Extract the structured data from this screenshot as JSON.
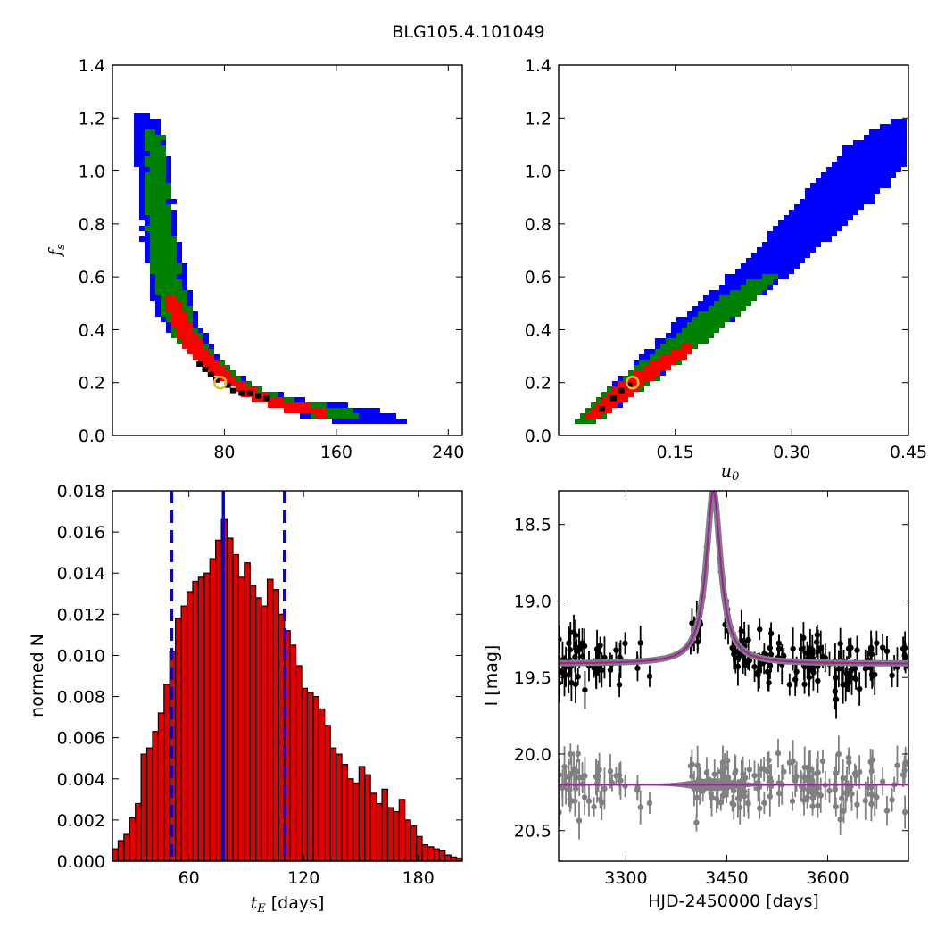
{
  "title": "BLG105.4.101049",
  "colors": {
    "sigma3": "#0000ff",
    "sigma2": "#008000",
    "sigma1": "#ff0000",
    "best_cells": "#000000",
    "best_marker_edge": "#e0c020",
    "hist_bar": "#e00000",
    "hist_edge": "#000000",
    "percentile_line": "#0000ff",
    "data_points": "#000000",
    "residual_points": "#808080",
    "model": "#a020a0",
    "model_band": "#808080"
  },
  "chart_data": [
    {
      "type": "heatmap",
      "panel": "tE-fs",
      "xlabel": "",
      "ylabel": "f_s",
      "xlim": [
        0,
        250
      ],
      "ylim": [
        0.0,
        1.4
      ],
      "xticks": [
        "80",
        "160",
        "240"
      ],
      "yticks": [
        "0.0",
        "0.2",
        "0.4",
        "0.6",
        "0.8",
        "1.0",
        "1.2",
        "1.4"
      ],
      "regions": [
        {
          "level": "3-sigma",
          "color": "blue",
          "curve": [
            [
              24,
              1.2
            ],
            [
              28,
              1.0
            ],
            [
              32,
              0.8
            ],
            [
              38,
              0.6
            ],
            [
              46,
              0.45
            ],
            [
              56,
              0.35
            ],
            [
              70,
              0.28
            ],
            [
              85,
              0.22
            ],
            [
              100,
              0.17
            ],
            [
              120,
              0.13
            ],
            [
              150,
              0.1
            ],
            [
              190,
              0.08
            ],
            [
              200,
              0.07
            ]
          ],
          "halfwidth_frac": [
            0.1,
            0.12,
            0.14,
            0.16,
            0.18,
            0.18,
            0.17,
            0.16,
            0.15,
            0.14,
            0.12,
            0.1,
            0.06
          ]
        },
        {
          "level": "2-sigma",
          "color": "green",
          "curve": [
            [
              28,
              1.15
            ],
            [
              32,
              0.85
            ],
            [
              38,
              0.6
            ],
            [
              46,
              0.45
            ],
            [
              56,
              0.35
            ],
            [
              70,
              0.28
            ],
            [
              85,
              0.22
            ],
            [
              100,
              0.17
            ],
            [
              120,
              0.13
            ],
            [
              150,
              0.1
            ],
            [
              170,
              0.085
            ]
          ],
          "halfwidth_frac": [
            0.05,
            0.08,
            0.1,
            0.11,
            0.12,
            0.12,
            0.11,
            0.1,
            0.09,
            0.08,
            0.05
          ]
        },
        {
          "level": "1-sigma",
          "color": "red",
          "curve": [
            [
              42,
              0.52
            ],
            [
              48,
              0.42
            ],
            [
              56,
              0.35
            ],
            [
              66,
              0.29
            ],
            [
              78,
              0.23
            ],
            [
              90,
              0.19
            ],
            [
              105,
              0.15
            ],
            [
              125,
              0.12
            ],
            [
              145,
              0.1
            ]
          ],
          "halfwidth_frac": [
            0.04,
            0.06,
            0.07,
            0.07,
            0.06,
            0.06,
            0.05,
            0.04,
            0.03
          ]
        }
      ],
      "best_cells": [
        [
          62,
          0.27
        ],
        [
          66,
          0.25
        ],
        [
          70,
          0.23
        ],
        [
          74,
          0.21
        ],
        [
          82,
          0.19
        ],
        [
          86,
          0.17
        ],
        [
          92,
          0.16
        ],
        [
          98,
          0.16
        ],
        [
          104,
          0.15
        ],
        [
          110,
          0.14
        ]
      ],
      "best_fit": {
        "x": 77,
        "y": 0.2
      }
    },
    {
      "type": "heatmap",
      "panel": "u0-fs",
      "xlabel": "u_0",
      "ylabel": "",
      "xlim": [
        0.0,
        0.45
      ],
      "ylim": [
        0.0,
        1.4
      ],
      "xticks": [
        "0.15",
        "0.30",
        "0.45"
      ],
      "yticks": [
        "0.0",
        "0.2",
        "0.4",
        "0.6",
        "0.8",
        "1.0",
        "1.2",
        "1.4"
      ],
      "regions": [
        {
          "level": "3-sigma",
          "color": "blue",
          "curve": [
            [
              0.035,
              0.07
            ],
            [
              0.06,
              0.13
            ],
            [
              0.1,
              0.22
            ],
            [
              0.15,
              0.35
            ],
            [
              0.2,
              0.48
            ],
            [
              0.25,
              0.6
            ],
            [
              0.3,
              0.74
            ],
            [
              0.35,
              0.88
            ],
            [
              0.39,
              1.02
            ],
            [
              0.42,
              1.14
            ],
            [
              0.44,
              1.2
            ]
          ],
          "halfwidth": [
            0.012,
            0.02,
            0.03,
            0.038,
            0.045,
            0.05,
            0.055,
            0.06,
            0.06,
            0.05,
            0.02
          ]
        },
        {
          "level": "2-sigma",
          "color": "green",
          "curve": [
            [
              0.035,
              0.07
            ],
            [
              0.06,
              0.13
            ],
            [
              0.1,
              0.22
            ],
            [
              0.15,
              0.34
            ],
            [
              0.2,
              0.46
            ],
            [
              0.23,
              0.54
            ],
            [
              0.26,
              0.6
            ]
          ],
          "halfwidth": [
            0.012,
            0.018,
            0.024,
            0.028,
            0.028,
            0.022,
            0.012
          ]
        },
        {
          "level": "1-sigma",
          "color": "red",
          "curve": [
            [
              0.05,
              0.1
            ],
            [
              0.08,
              0.18
            ],
            [
              0.1,
              0.22
            ],
            [
              0.13,
              0.28
            ],
            [
              0.16,
              0.34
            ]
          ],
          "halfwidth": [
            0.01,
            0.014,
            0.016,
            0.014,
            0.008
          ]
        }
      ],
      "best_cells": [
        [
          0.055,
          0.1
        ],
        [
          0.07,
          0.14
        ],
        [
          0.08,
          0.17
        ],
        [
          0.09,
          0.19
        ]
      ],
      "best_fit": {
        "x": 0.095,
        "y": 0.2
      }
    },
    {
      "type": "bar",
      "panel": "tE-histogram",
      "xlabel_var": "t_E",
      "xlabel_unit": "[days]",
      "ylabel": "normed N",
      "xlim": [
        20,
        203
      ],
      "ylim": [
        0.0,
        0.018
      ],
      "xticks": [
        "60",
        "120",
        "180"
      ],
      "yticks": [
        "0.000",
        "0.002",
        "0.004",
        "0.006",
        "0.008",
        "0.010",
        "0.012",
        "0.014",
        "0.016",
        "0.018"
      ],
      "bin_start": 20,
      "bin_width": 3,
      "values": [
        0.0006,
        0.001,
        0.0013,
        0.0021,
        0.0028,
        0.0052,
        0.0055,
        0.0063,
        0.0072,
        0.0086,
        0.0102,
        0.0118,
        0.0124,
        0.0131,
        0.0136,
        0.0138,
        0.014,
        0.0147,
        0.0156,
        0.0166,
        0.0157,
        0.0149,
        0.0138,
        0.0145,
        0.0134,
        0.0128,
        0.0124,
        0.0137,
        0.0132,
        0.012,
        0.0112,
        0.0105,
        0.0095,
        0.0084,
        0.0082,
        0.008,
        0.0074,
        0.0066,
        0.0055,
        0.0052,
        0.0047,
        0.004,
        0.0038,
        0.0046,
        0.0042,
        0.0033,
        0.0028,
        0.0035,
        0.0026,
        0.0024,
        0.003,
        0.002,
        0.0017,
        0.0012,
        0.0008,
        0.0007,
        0.0006,
        0.0005,
        0.0003,
        0.0002,
        0.00015,
        0.0001
      ],
      "percentiles": {
        "median": 78,
        "lower": 51,
        "upper": 110
      }
    },
    {
      "type": "scatter",
      "panel": "lightcurve",
      "xlabel": "HJD-2450000 [days]",
      "ylabel": "I [mag]",
      "xlim": [
        3200,
        3720
      ],
      "ylim": [
        20.7,
        18.28
      ],
      "xticks": [
        "3300",
        "3450",
        "3600"
      ],
      "yticks": [
        "18.5",
        "19.0",
        "19.5",
        "20.0",
        "20.5"
      ],
      "model": {
        "t0": 3430,
        "baseline": 19.41,
        "peak": 18.28,
        "tE_width": 13
      },
      "residual_baseline": 20.2,
      "data_mag_spread": 0.17,
      "data_err_range": [
        0.05,
        0.14
      ],
      "n_points": 220
    }
  ]
}
